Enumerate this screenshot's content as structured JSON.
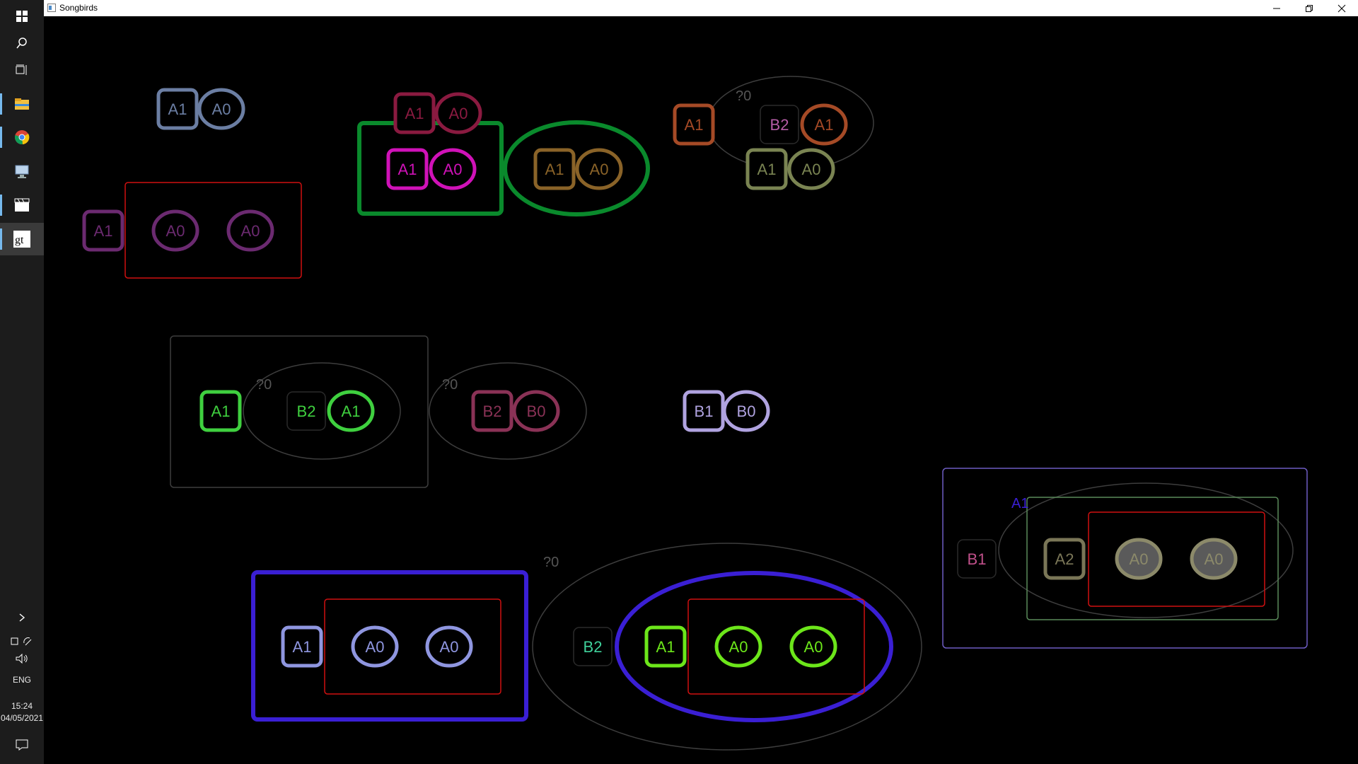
{
  "window": {
    "title": "Songbirds"
  },
  "taskbar": {
    "apps": [
      "windows-start-icon",
      "search-icon",
      "task-view-icon",
      "file-explorer-icon",
      "chrome-icon",
      "remote-desktop-icon",
      "clapperboard-icon",
      "gt-app-icon"
    ],
    "clock": {
      "time": "15:24",
      "date": "04/05/2021"
    },
    "language": "ENG"
  },
  "canvas": {
    "stroke_colors": {
      "grey": "#3d3d3d",
      "red": "#d01010",
      "blue": "#3a1fd4",
      "pink": "#d012b8",
      "green": "#0a8a2c",
      "violet": "#6e5cc2",
      "light-green": "#5a8a5a"
    },
    "labels": [
      {
        "id": "l1",
        "text": "A1",
        "color": "#6b7ea3",
        "shape": "rect"
      },
      {
        "id": "l2",
        "text": "A0",
        "color": "#6b7ea3",
        "shape": "oval"
      },
      {
        "id": "l3",
        "text": "A1",
        "color": "#6b2a70",
        "shape": "rect"
      },
      {
        "id": "l4",
        "text": "A0",
        "color": "#6b2a70",
        "shape": "oval"
      },
      {
        "id": "l5",
        "text": "A0",
        "color": "#6b2a70",
        "shape": "oval"
      },
      {
        "id": "l6",
        "text": "A1",
        "color": "#8a1a40",
        "shape": "rect"
      },
      {
        "id": "l7",
        "text": "A0",
        "color": "#8a1a40",
        "shape": "oval"
      },
      {
        "id": "l8",
        "text": "A1",
        "color": "#d012b8",
        "shape": "rect"
      },
      {
        "id": "l9",
        "text": "A0",
        "color": "#d012b8",
        "shape": "oval"
      },
      {
        "id": "l10",
        "text": "A1",
        "color": "#8a6328",
        "shape": "rect"
      },
      {
        "id": "l11",
        "text": "A0",
        "color": "#8a6328",
        "shape": "oval"
      },
      {
        "id": "l12",
        "text": "A1",
        "color": "#a54a26",
        "shape": "rect"
      },
      {
        "id": "l13",
        "text": "B2",
        "color": "#2a2a2a",
        "shape": "rect",
        "text_color": "#b45ca4"
      },
      {
        "id": "l14",
        "text": "A1",
        "color": "#a54a26",
        "shape": "oval"
      },
      {
        "id": "l15",
        "text": "A1",
        "color": "#7a8452",
        "shape": "rect"
      },
      {
        "id": "l16",
        "text": "A0",
        "color": "#7a8452",
        "shape": "oval"
      },
      {
        "id": "l17",
        "text": "A1",
        "color": "#3fd03f",
        "shape": "rect"
      },
      {
        "id": "l18",
        "text": "B2",
        "color": "#2a2a2a",
        "shape": "rect",
        "text_color": "#3fd03f"
      },
      {
        "id": "l19",
        "text": "A1",
        "color": "#3fd03f",
        "shape": "oval"
      },
      {
        "id": "l20",
        "text": "B2",
        "color": "#8a3256",
        "shape": "rect"
      },
      {
        "id": "l21",
        "text": "B0",
        "color": "#8a3256",
        "shape": "oval"
      },
      {
        "id": "l22",
        "text": "B1",
        "color": "#b0a3e0",
        "shape": "rect"
      },
      {
        "id": "l23",
        "text": "B0",
        "color": "#b0a3e0",
        "shape": "oval"
      },
      {
        "id": "l24",
        "text": "A1",
        "color": "#8f96e0",
        "shape": "rect"
      },
      {
        "id": "l25",
        "text": "A0",
        "color": "#8f96e0",
        "shape": "oval"
      },
      {
        "id": "l26",
        "text": "A0",
        "color": "#8f96e0",
        "shape": "oval"
      },
      {
        "id": "l27",
        "text": "B2",
        "color": "#2a2a2a",
        "shape": "rect",
        "text_color": "#3fd09a"
      },
      {
        "id": "l28",
        "text": "A1",
        "color": "#6ce61a",
        "shape": "rect"
      },
      {
        "id": "l29",
        "text": "A0",
        "color": "#6ce61a",
        "shape": "oval"
      },
      {
        "id": "l30",
        "text": "A0",
        "color": "#6ce61a",
        "shape": "oval"
      },
      {
        "id": "l31",
        "text": "B1",
        "color": "#2a2a2a",
        "shape": "rect",
        "text_color": "#c0508a"
      },
      {
        "id": "l32",
        "text": "A2",
        "color": "#7a7657",
        "shape": "rect"
      },
      {
        "id": "l33",
        "text": "A0",
        "color": "#8c8a6a",
        "shape": "oval",
        "fill": "#5a5a5a"
      },
      {
        "id": "l34",
        "text": "A0",
        "color": "#8c8a6a",
        "shape": "oval",
        "fill": "#5a5a5a"
      }
    ],
    "question_marks": [
      "?0",
      "?0",
      "?0",
      "?0"
    ],
    "floating_label": {
      "text": "A1",
      "color": "#3a1fd4"
    }
  }
}
